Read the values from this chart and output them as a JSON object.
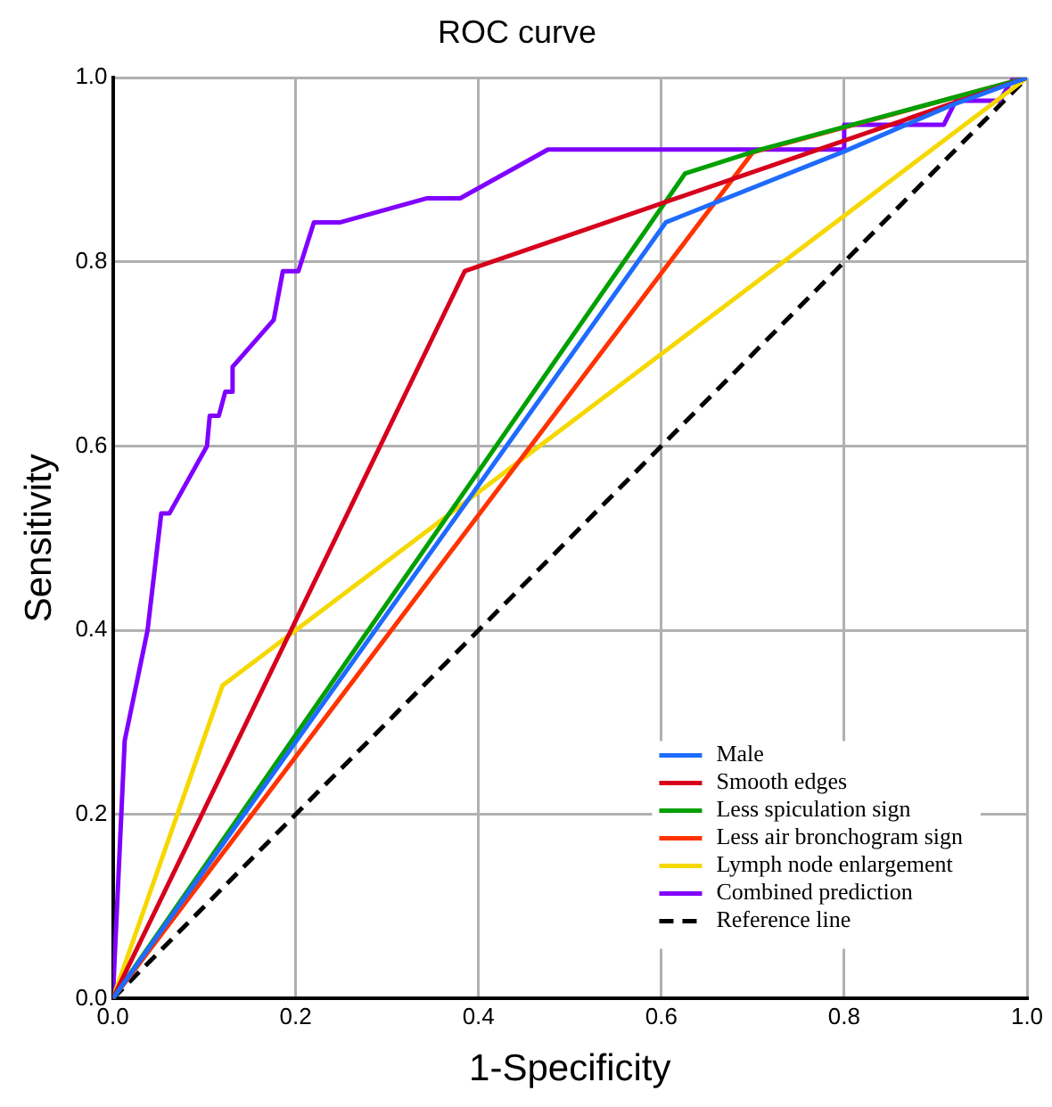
{
  "chart_data": {
    "type": "line",
    "title": "ROC curve",
    "xlabel": "1-Specificity",
    "ylabel": "Sensitivity",
    "xlim": [
      0,
      1
    ],
    "ylim": [
      0,
      1
    ],
    "xticks": [
      {
        "value": 0,
        "label": "0.0"
      },
      0.2,
      0.4,
      0.6,
      0.8,
      {
        "value": 1,
        "label": "1.0"
      }
    ],
    "yticks": [
      {
        "value": 0,
        "label": "0.0"
      },
      0.2,
      0.4,
      0.6,
      0.8,
      {
        "value": 1,
        "label": "1.0"
      }
    ],
    "grid": true,
    "legend": "bottom right",
    "marker": "none",
    "line_style": "solid",
    "series": [
      {
        "name": "Male",
        "color": "#1f6bff",
        "x": [
          0,
          0.605,
          0.8,
          0.917,
          1
        ],
        "values": [
          0,
          0.843,
          0.92,
          0.97,
          1
        ]
      },
      {
        "name": "Smooth edges",
        "color": "#d6001c",
        "x": [
          0,
          0.385,
          1
        ],
        "values": [
          0,
          0.79,
          1
        ]
      },
      {
        "name": "Less spiculation sign",
        "color": "#00a000",
        "x": [
          0,
          0.626,
          0.708,
          1
        ],
        "values": [
          0,
          0.896,
          0.922,
          1
        ]
      },
      {
        "name": "Less air bronchogram sign",
        "color": "#ff3300",
        "x": [
          0,
          0.7,
          1
        ],
        "values": [
          0,
          0.919,
          1
        ]
      },
      {
        "name": "Lymph node enlargement",
        "color": "#f5d800",
        "x": [
          0,
          0.12,
          1
        ],
        "values": [
          0,
          0.34,
          1
        ]
      },
      {
        "name": "Combined prediction",
        "color": "#8000ff",
        "x": [
          0,
          0.013,
          0.038,
          0.053,
          0.062,
          0.103,
          0.106,
          0.116,
          0.123,
          0.131,
          0.131,
          0.176,
          0.186,
          0.203,
          0.22,
          0.249,
          0.343,
          0.38,
          0.476,
          0.8,
          0.8,
          0.909,
          0.922,
          0.97,
          0.985,
          1
        ],
        "values": [
          0,
          0.28,
          0.4,
          0.527,
          0.527,
          0.6,
          0.633,
          0.633,
          0.659,
          0.659,
          0.686,
          0.737,
          0.79,
          0.79,
          0.843,
          0.843,
          0.869,
          0.869,
          0.922,
          0.922,
          0.949,
          0.949,
          0.975,
          0.975,
          1,
          1
        ]
      },
      {
        "name": "Reference line",
        "color": "#000000",
        "line_style": "dashed",
        "x": [
          0,
          1
        ],
        "values": [
          0,
          1
        ]
      }
    ]
  }
}
